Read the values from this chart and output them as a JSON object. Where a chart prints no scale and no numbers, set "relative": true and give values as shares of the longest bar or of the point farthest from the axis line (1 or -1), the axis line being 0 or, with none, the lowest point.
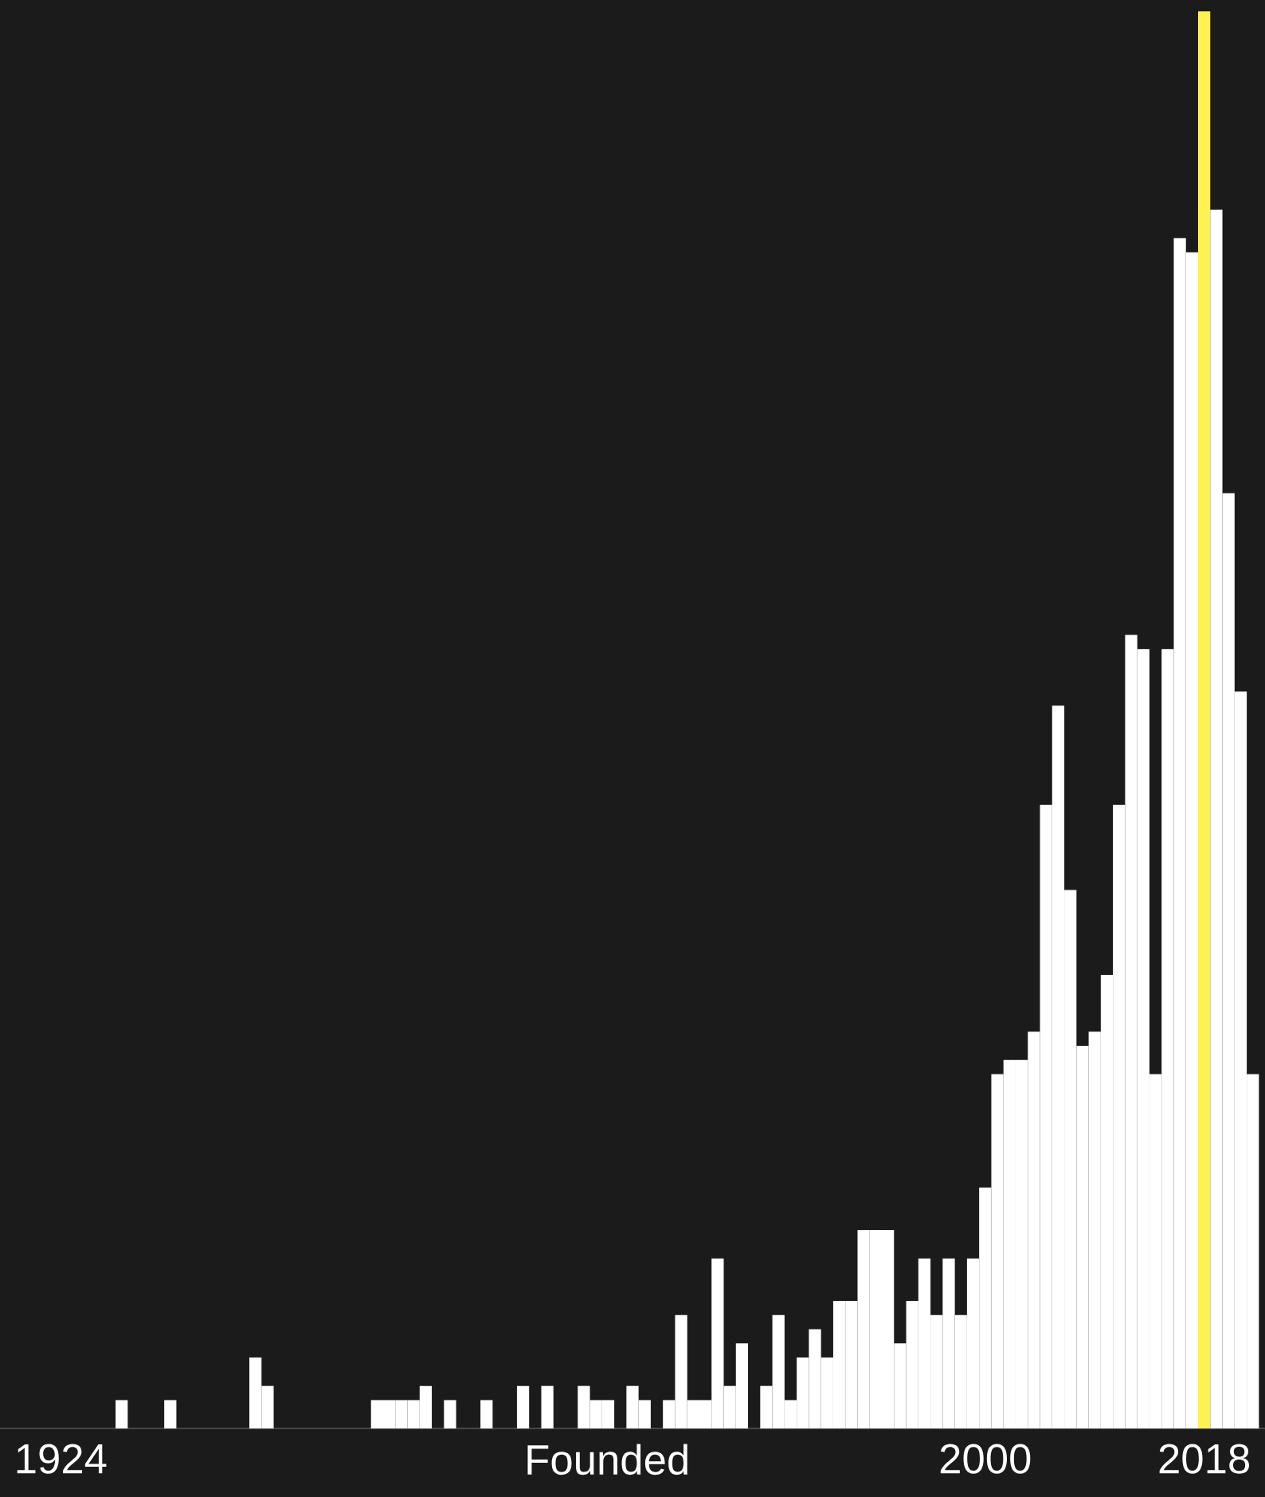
{
  "chart_data": {
    "type": "bar",
    "relative": true,
    "xlabel": "Founded",
    "x": [
      1929,
      1933,
      1940,
      1941,
      1950,
      1951,
      1952,
      1953,
      1954,
      1956,
      1959,
      1962,
      1964,
      1967,
      1968,
      1969,
      1971,
      1972,
      1974,
      1975,
      1976,
      1977,
      1978,
      1979,
      1980,
      1982,
      1983,
      1984,
      1985,
      1986,
      1987,
      1988,
      1989,
      1990,
      1991,
      1992,
      1993,
      1994,
      1995,
      1996,
      1997,
      1998,
      1999,
      2000,
      2001,
      2002,
      2003,
      2004,
      2005,
      2006,
      2007,
      2008,
      2009,
      2010,
      2011,
      2012,
      2013,
      2014,
      2015,
      2016,
      2017,
      2018,
      2019,
      2020,
      2021,
      2022
    ],
    "values": [
      0.02,
      0.02,
      0.05,
      0.03,
      0.02,
      0.02,
      0.02,
      0.02,
      0.03,
      0.02,
      0.02,
      0.03,
      0.03,
      0.03,
      0.02,
      0.02,
      0.03,
      0.02,
      0.02,
      0.08,
      0.02,
      0.02,
      0.12,
      0.03,
      0.06,
      0.03,
      0.08,
      0.02,
      0.05,
      0.07,
      0.05,
      0.09,
      0.09,
      0.14,
      0.14,
      0.14,
      0.06,
      0.09,
      0.12,
      0.08,
      0.12,
      0.08,
      0.12,
      0.17,
      0.25,
      0.26,
      0.26,
      0.28,
      0.44,
      0.51,
      0.38,
      0.27,
      0.28,
      0.32,
      0.44,
      0.56,
      0.55,
      0.25,
      0.55,
      0.84,
      0.83,
      1,
      0.86,
      0.66,
      0.52,
      0.25
    ],
    "colors": [
      "#ffffff",
      "#ffffff",
      "#ffffff",
      "#ffffff",
      "#ffffff",
      "#ffffff",
      "#ffffff",
      "#ffffff",
      "#ffffff",
      "#ffffff",
      "#ffffff",
      "#ffffff",
      "#ffffff",
      "#ffffff",
      "#ffffff",
      "#ffffff",
      "#ffffff",
      "#ffffff",
      "#ffffff",
      "#ffffff",
      "#ffffff",
      "#ffffff",
      "#ffffff",
      "#ffffff",
      "#ffffff",
      "#ffffff",
      "#ffffff",
      "#ffffff",
      "#ffffff",
      "#ffffff",
      "#ffffff",
      "#ffffff",
      "#ffffff",
      "#ffffff",
      "#ffffff",
      "#ffffff",
      "#ffffff",
      "#ffffff",
      "#ffffff",
      "#ffffff",
      "#ffffff",
      "#ffffff",
      "#ffffff",
      "#ffffff",
      "#ffffff",
      "#ffffff",
      "#ffffff",
      "#ffffff",
      "#ffffff",
      "#ffffff",
      "#ffffff",
      "#ffffff",
      "#ffffff",
      "#ffffff",
      "#ffffff",
      "#ffffff",
      "#ffffff",
      "#ffffff",
      "#ffffff",
      "#ffffff",
      "#ffffff",
      "#fef151",
      "#ffffff",
      "#ffffff",
      "#ffffff",
      "#ffffff"
    ],
    "xlim": [
      1919,
      2023
    ],
    "xticks": [
      1924,
      2000,
      2018
    ]
  }
}
